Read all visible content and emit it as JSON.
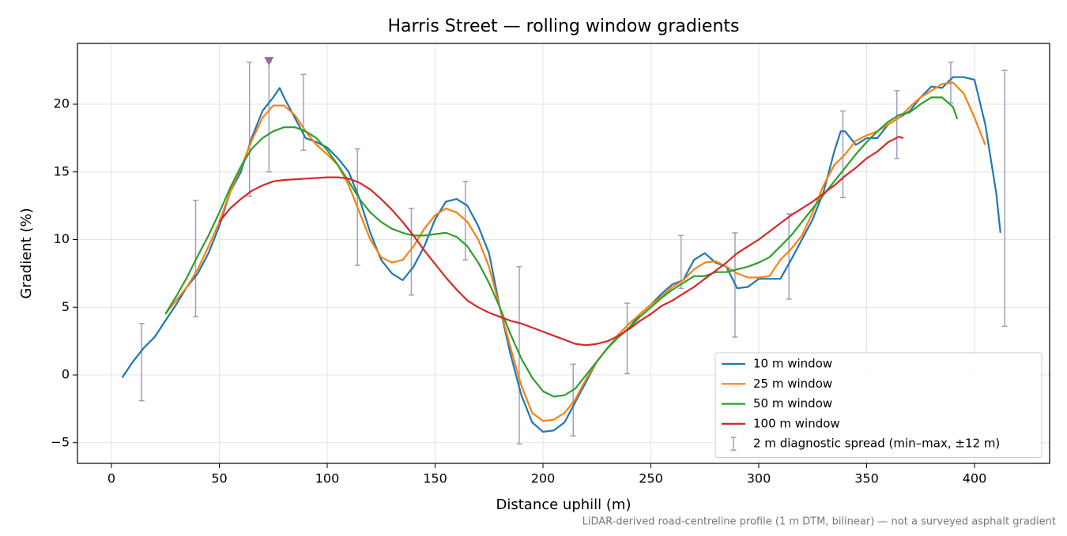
{
  "chart_data": {
    "type": "line",
    "title": "Harris Street — rolling window gradients",
    "x_label": "Distance uphill (m)",
    "y_label": "Gradient (%)",
    "footnote": "LiDAR-derived road-centreline profile (1 m DTM, bilinear) — not a surveyed asphalt gradient",
    "xlim": [
      -15.75,
      434.8
    ],
    "ylim": [
      -6.53,
      24.49
    ],
    "xticks": [
      0,
      50,
      100,
      150,
      200,
      250,
      300,
      350,
      400
    ],
    "yticks": [
      {
        "value": -5,
        "label": "−5"
      },
      0,
      5,
      10,
      15,
      20
    ],
    "grid": true,
    "legend": "lower right",
    "series": [
      {
        "name": "10 m window",
        "color": "#1f77b4",
        "x": [
          5,
          10,
          15,
          20,
          25,
          30,
          35,
          40,
          45,
          50,
          55,
          60,
          65,
          70,
          75,
          78,
          80,
          85,
          90,
          95,
          100,
          105,
          110,
          115,
          120,
          125,
          130,
          135,
          140,
          145,
          150,
          155,
          160,
          165,
          170,
          175,
          180,
          185,
          190,
          195,
          200,
          205,
          210,
          215,
          220,
          225,
          230,
          235,
          240,
          245,
          250,
          255,
          260,
          265,
          270,
          275,
          280,
          285,
          290,
          295,
          300,
          305,
          310,
          315,
          320,
          325,
          330,
          335,
          338,
          340,
          345,
          350,
          355,
          360,
          365,
          370,
          375,
          380,
          385,
          390,
          395,
          400,
          405,
          410,
          412
        ],
        "y": [
          -0.2,
          1,
          2,
          2.8,
          4,
          5.2,
          6.5,
          7.5,
          9,
          11,
          13.5,
          15,
          17.5,
          19.5,
          20.5,
          21.2,
          20.5,
          19,
          17.5,
          17.2,
          16.8,
          16,
          15,
          13,
          10.5,
          8.5,
          7.5,
          7,
          8,
          9.5,
          11.5,
          12.8,
          13,
          12.5,
          11,
          9,
          5,
          1.5,
          -1.5,
          -3.5,
          -4.2,
          -4.1,
          -3.5,
          -2,
          -0.5,
          1,
          2,
          2.8,
          3.5,
          4.5,
          5.2,
          6,
          6.7,
          7,
          8.5,
          9,
          8.3,
          8,
          6.4,
          6.5,
          7.1,
          7.1,
          7.1,
          8.5,
          10,
          11.5,
          13.5,
          16.5,
          18,
          18,
          17,
          17.5,
          17.5,
          18.5,
          19,
          19.5,
          20.5,
          21.3,
          21.2,
          22,
          22,
          21.8,
          18.5,
          13.5,
          10.5
        ]
      },
      {
        "name": "25 m window",
        "color": "#ff7f0e",
        "x": [
          25,
          30,
          35,
          40,
          45,
          50,
          55,
          60,
          65,
          70,
          75,
          80,
          85,
          90,
          95,
          100,
          105,
          110,
          115,
          120,
          125,
          130,
          135,
          140,
          145,
          150,
          155,
          160,
          165,
          170,
          175,
          180,
          185,
          190,
          195,
          200,
          205,
          210,
          215,
          220,
          225,
          230,
          235,
          240,
          245,
          250,
          255,
          260,
          265,
          270,
          275,
          280,
          285,
          290,
          295,
          300,
          305,
          310,
          315,
          320,
          325,
          330,
          335,
          340,
          345,
          350,
          355,
          360,
          365,
          370,
          375,
          380,
          385,
          390,
          395,
          400,
          405
        ],
        "y": [
          4.5,
          5.5,
          6.5,
          7.8,
          9.5,
          11.3,
          13.5,
          15.3,
          17.3,
          19,
          19.9,
          19.9,
          19.2,
          18,
          17,
          16.3,
          15.5,
          14,
          12,
          10,
          8.7,
          8.3,
          8.5,
          9.5,
          10.8,
          11.8,
          12.3,
          12,
          11.3,
          10,
          8,
          5,
          2,
          -0.8,
          -2.8,
          -3.4,
          -3.3,
          -2.8,
          -1.8,
          -0.3,
          1,
          2,
          3,
          3.8,
          4.5,
          5.2,
          5.8,
          6.5,
          7,
          7.8,
          8.3,
          8.4,
          8,
          7.5,
          7.2,
          7.2,
          7.3,
          8.5,
          9.3,
          10.3,
          12,
          14,
          15.5,
          16.3,
          17.3,
          17.7,
          18,
          18.5,
          19,
          19.8,
          20.5,
          21,
          21.5,
          21.6,
          20.8,
          19,
          17
        ]
      },
      {
        "name": "50 m window",
        "color": "#2ca02c",
        "x": [
          25,
          30,
          35,
          40,
          45,
          50,
          55,
          60,
          65,
          70,
          75,
          80,
          85,
          90,
          95,
          100,
          105,
          110,
          115,
          120,
          125,
          130,
          135,
          140,
          145,
          150,
          155,
          160,
          165,
          170,
          175,
          180,
          185,
          190,
          195,
          200,
          205,
          210,
          215,
          220,
          225,
          230,
          235,
          240,
          245,
          250,
          255,
          260,
          265,
          270,
          275,
          280,
          285,
          290,
          295,
          300,
          305,
          310,
          315,
          320,
          325,
          330,
          335,
          340,
          345,
          350,
          355,
          360,
          365,
          370,
          375,
          380,
          385,
          390,
          392
        ],
        "y": [
          4.5,
          5.8,
          7.2,
          8.8,
          10.3,
          12,
          13.8,
          15.4,
          16.7,
          17.5,
          18,
          18.3,
          18.3,
          18,
          17.5,
          16.6,
          15.5,
          14.3,
          13,
          12,
          11.3,
          10.8,
          10.5,
          10.3,
          10.3,
          10.4,
          10.5,
          10.2,
          9.5,
          8.3,
          6.8,
          5,
          3,
          1.2,
          -0.2,
          -1.2,
          -1.6,
          -1.5,
          -1,
          0,
          1,
          2,
          2.8,
          3.5,
          4.3,
          5,
          5.7,
          6.3,
          6.8,
          7.3,
          7.3,
          7.6,
          7.6,
          7.8,
          8,
          8.3,
          8.7,
          9.5,
          10.3,
          11.3,
          12.3,
          13.3,
          14.3,
          15.3,
          16.3,
          17.2,
          18,
          18.7,
          19.2,
          19.4,
          20,
          20.5,
          20.5,
          19.8,
          18.9
        ]
      },
      {
        "name": "100 m window",
        "color": "#d62728",
        "x": [
          50,
          55,
          60,
          65,
          70,
          75,
          80,
          90,
          100,
          105,
          110,
          115,
          120,
          125,
          130,
          135,
          140,
          145,
          150,
          155,
          160,
          165,
          170,
          175,
          180,
          185,
          190,
          195,
          200,
          205,
          210,
          215,
          220,
          225,
          230,
          235,
          240,
          245,
          250,
          255,
          260,
          265,
          270,
          275,
          280,
          285,
          290,
          295,
          300,
          305,
          310,
          315,
          320,
          325,
          330,
          335,
          340,
          345,
          350,
          355,
          360,
          365,
          367
        ],
        "y": [
          11.3,
          12.3,
          13,
          13.6,
          14,
          14.3,
          14.4,
          14.5,
          14.6,
          14.6,
          14.5,
          14.2,
          13.7,
          13,
          12.2,
          11.3,
          10.3,
          9.2,
          8.2,
          7.2,
          6.3,
          5.5,
          5,
          4.6,
          4.3,
          4,
          3.8,
          3.5,
          3.2,
          2.9,
          2.6,
          2.3,
          2.2,
          2.3,
          2.5,
          2.9,
          3.4,
          4,
          4.5,
          5.1,
          5.5,
          6,
          6.5,
          7.1,
          7.7,
          8.3,
          9,
          9.5,
          10,
          10.6,
          11.2,
          11.8,
          12.3,
          12.8,
          13.4,
          14,
          14.7,
          15.3,
          16,
          16.5,
          17.2,
          17.6,
          17.5
        ]
      }
    ],
    "error_bars": {
      "name": "2 m diagnostic spread (min–max, ±12 m)",
      "color": "#a09ec0",
      "x": [
        14,
        39,
        64,
        73,
        89,
        114,
        139,
        164,
        189,
        214,
        239,
        264,
        289,
        314,
        339,
        364,
        389,
        414
      ],
      "low": [
        -1.9,
        4.3,
        13.2,
        15,
        16.6,
        8.1,
        5.9,
        8.5,
        -5.1,
        -4.5,
        0.1,
        6.4,
        2.8,
        5.6,
        13.1,
        16,
        20.1,
        3.6
      ],
      "high": [
        3.8,
        12.9,
        23.1,
        23.1,
        22.2,
        16.7,
        12.3,
        14.3,
        8,
        0.8,
        5.3,
        10.3,
        10.5,
        11.9,
        19.5,
        21,
        23.1,
        22.5
      ]
    },
    "peak_marker": {
      "x": 73,
      "y": 23.2,
      "color": "#8c6fa8"
    }
  }
}
